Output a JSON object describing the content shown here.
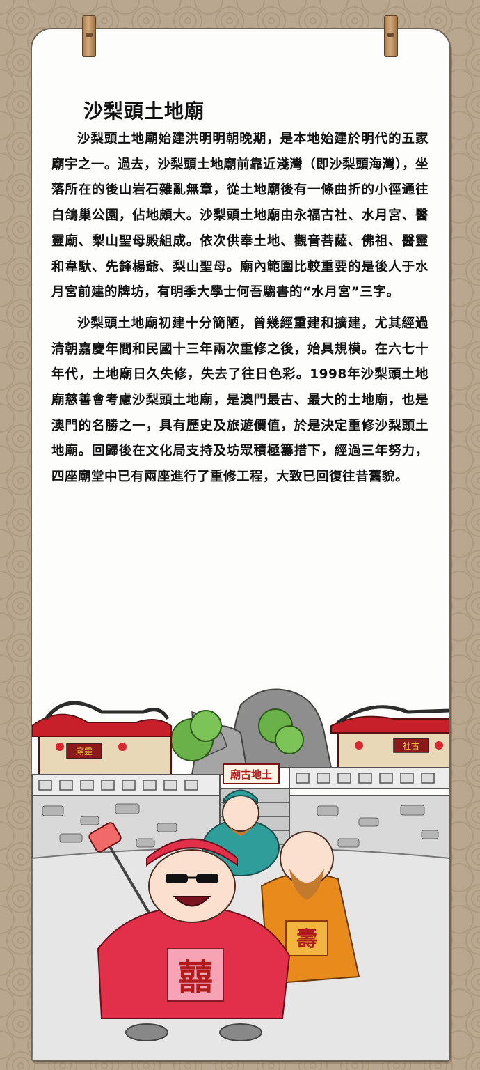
{
  "article": {
    "title": "沙梨頭土地廟",
    "paragraphs": [
      "沙梨頭土地廟始建洪明明朝晚期，是本地始建於明代的五家廟宇之一。過去，沙梨頭土地廟前靠近淺灣（即沙梨頭海灣），坐落所在的後山岩石雜亂無章，從土地廟後有一條曲折的小徑通往白鴿巢公園，佔地頗大。沙梨頭土地廟由永福古社、水月宮、醫靈廟、梨山聖母殿組成。依次供奉土地、觀音菩薩、佛祖、醫靈和韋馱、先鋒楊爺、梨山聖母。廟內範圍比較重要的是後人于水月宮前建的牌坊，有明季大學士何吾騶書的“水月宮”三字。",
      "沙梨頭土地廟初建十分簡陋，曾幾經重建和擴建，尤其經過清朝嘉慶年間和民國十三年兩次重修之後，始具規模。在六七十年代，土地廟日久失修，失去了往日色彩。1998年沙梨頭土地廟慈善會考慮沙梨頭土地廟，是澳門最古、最大的土地廟，也是澳門的名勝之一，具有歷史及旅遊價值，於是決定重修沙梨頭土地廟。回歸後在文化局支持及坊眾積極籌措下，經過三年努力，四座廟堂中已有兩座進行了重修工程，大致已回復往昔舊貌。"
    ]
  },
  "illustration": {
    "temple_sign": "廟古地土",
    "left_plaque": "廟靈",
    "right_plaque": "社古",
    "robe_character": "囍",
    "robe_character_2": "壽"
  },
  "colors": {
    "background": "#b9a88f",
    "paper": "#fdfdfb",
    "roof": "#c8202a",
    "wall": "#d9d9d9",
    "robe_red": "#e2304a",
    "robe_teal": "#2f9e9a",
    "robe_orange": "#e98a1c"
  }
}
